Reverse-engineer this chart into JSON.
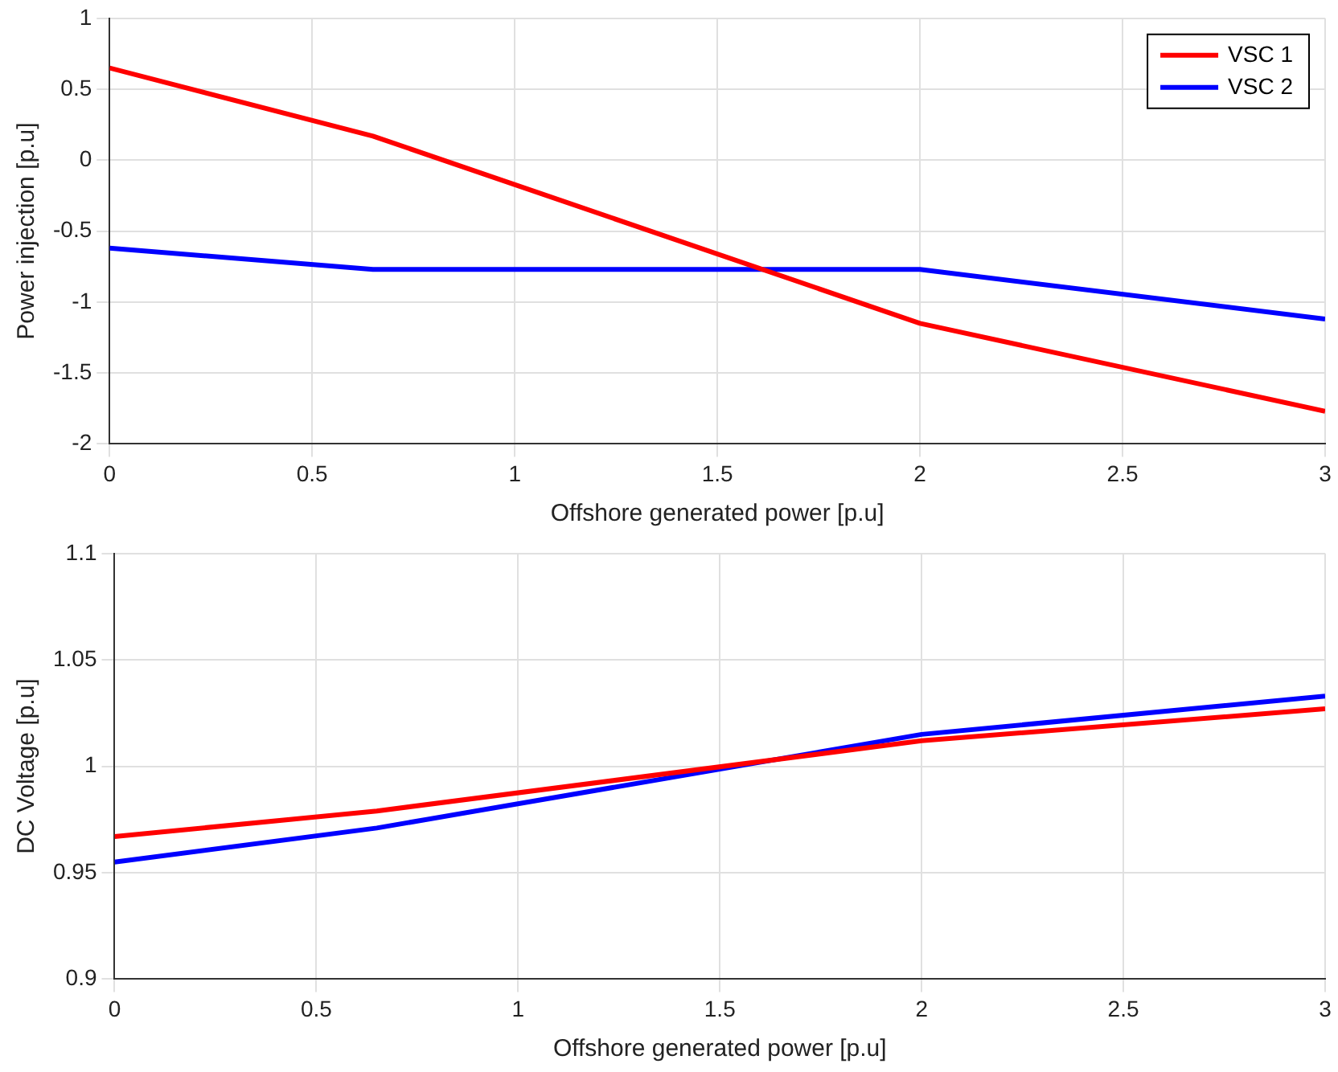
{
  "chart_data": [
    {
      "type": "line",
      "xlabel": "Offshore generated power [p.u]",
      "ylabel": "Power injection [p.u]",
      "x": [
        0,
        0.65,
        2,
        3
      ],
      "xlim": [
        0,
        3
      ],
      "xticks": [
        0,
        0.5,
        1,
        1.5,
        2,
        2.5,
        3
      ],
      "ylim": [
        -2,
        1
      ],
      "yticks": [
        -2,
        -1.5,
        -1,
        -0.5,
        0,
        0.5,
        1
      ],
      "grid": true,
      "legend": "top right",
      "series": [
        {
          "name": "VSC 1",
          "color": "#ff0000",
          "values": [
            0.65,
            0.17,
            -1.15,
            -1.77
          ]
        },
        {
          "name": "VSC 2",
          "color": "#0000ff",
          "values": [
            -0.62,
            -0.77,
            -0.77,
            -1.12
          ]
        }
      ]
    },
    {
      "type": "line",
      "xlabel": "Offshore generated power [p.u]",
      "ylabel": "DC Voltage [p.u]",
      "x": [
        0,
        0.65,
        2,
        3
      ],
      "xlim": [
        0,
        3
      ],
      "xticks": [
        0,
        0.5,
        1,
        1.5,
        2,
        2.5,
        3
      ],
      "ylim": [
        0.9,
        1.1
      ],
      "yticks": [
        0.9,
        0.95,
        1,
        1.05,
        1.1
      ],
      "grid": true,
      "series": [
        {
          "color": "#ff0000",
          "values": [
            0.967,
            0.979,
            1.012,
            1.027
          ]
        },
        {
          "color": "#0000ff",
          "values": [
            0.955,
            0.971,
            1.015,
            1.033
          ]
        }
      ]
    }
  ]
}
